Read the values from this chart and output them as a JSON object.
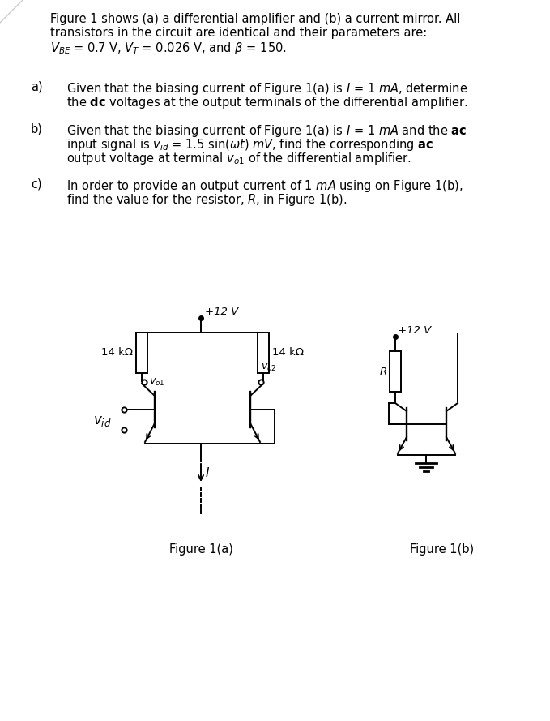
{
  "bg_color": "#ffffff",
  "fig_width": 6.79,
  "fig_height": 8.89,
  "dpi": 100,
  "line_color": "#000000",
  "lw": 1.4,
  "text_color": "#000000",
  "fold_color": "#cccccc",
  "caption_a": "Figure 1(a)",
  "caption_b": "Figure 1(b)",
  "label_14k_left": "14 kΩ",
  "label_14k_right": "14 kΩ",
  "label_plus12_a": "+12 V",
  "label_plus12_b": "+12 V",
  "label_vol": "$v_{o1}$",
  "label_vo2": "$v_{o2}$",
  "label_vid": "$\\mathit{v}_{id}$",
  "label_I": "$I$",
  "label_R": "$R$"
}
